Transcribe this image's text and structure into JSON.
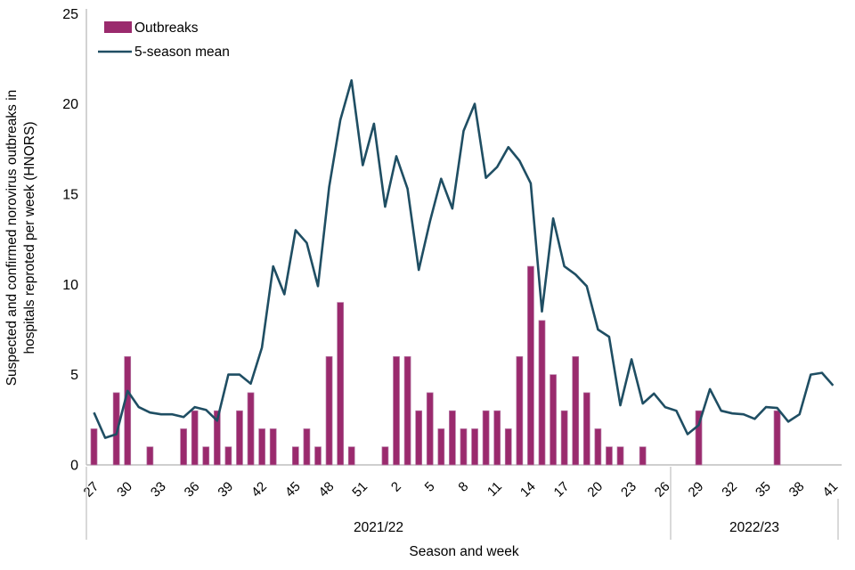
{
  "chart_data": {
    "type": "bar+line",
    "title": "",
    "xlabel": "Season and week",
    "ylabel_lines": [
      "Suspected and confirmed norovirus outbreaks in",
      "hospitals  reproted per week (HNORS)"
    ],
    "ylim": [
      0,
      25
    ],
    "yticks": [
      0,
      5,
      10,
      15,
      20,
      25
    ],
    "tick_every": 3,
    "legend_position": "top-left",
    "grid": false,
    "categories": [
      "27",
      "28",
      "29",
      "30",
      "31",
      "32",
      "33",
      "34",
      "35",
      "36",
      "37",
      "38",
      "39",
      "40",
      "41",
      "42",
      "43",
      "44",
      "45",
      "46",
      "47",
      "48",
      "49",
      "50",
      "51",
      "52",
      "1",
      "2",
      "3",
      "4",
      "5",
      "6",
      "7",
      "8",
      "9",
      "10",
      "11",
      "12",
      "13",
      "14",
      "15",
      "16",
      "17",
      "18",
      "19",
      "20",
      "21",
      "22",
      "23",
      "24",
      "25",
      "26",
      "27",
      "28",
      "29",
      "30",
      "31",
      "32",
      "33",
      "34",
      "35",
      "36",
      "37",
      "38",
      "39",
      "40",
      "41"
    ],
    "seasons": [
      {
        "label": "2021/22",
        "start_index": 0,
        "end_index": 51
      },
      {
        "label": "2022/23",
        "start_index": 52,
        "end_index": 66
      }
    ],
    "series": [
      {
        "name": "Outbreaks",
        "type": "bar",
        "color": "#9A2A6D",
        "values": [
          2,
          0,
          4,
          6,
          0,
          1,
          0,
          0,
          2,
          3,
          1,
          3,
          1,
          3,
          4,
          2,
          2,
          0,
          1,
          2,
          1,
          6,
          9,
          1,
          0,
          0,
          1,
          6,
          6,
          3,
          4,
          2,
          3,
          2,
          2,
          3,
          3,
          2,
          6,
          11,
          8,
          5,
          3,
          6,
          4,
          2,
          1,
          1,
          0,
          1,
          0,
          0,
          0,
          0,
          3,
          0,
          0,
          0,
          0,
          0,
          0,
          3,
          0,
          0,
          0,
          0,
          0
        ]
      },
      {
        "name": "5-season mean",
        "type": "line",
        "color": "#1F4E63",
        "values": [
          2.9,
          1.5,
          1.7,
          4.1,
          3.2,
          2.9,
          2.8,
          2.8,
          2.65,
          3.2,
          3.05,
          2.45,
          5.0,
          5.0,
          4.5,
          6.5,
          11.0,
          9.45,
          13.0,
          12.3,
          9.9,
          15.4,
          19.1,
          21.3,
          16.6,
          18.9,
          14.3,
          17.1,
          15.3,
          10.8,
          13.5,
          15.85,
          14.2,
          18.5,
          20.0,
          15.9,
          16.5,
          17.6,
          16.85,
          15.6,
          8.5,
          13.65,
          11.0,
          10.55,
          9.9,
          7.5,
          7.1,
          3.3,
          5.85,
          3.4,
          3.95,
          3.2,
          3.0,
          1.7,
          2.2,
          4.2,
          3.0,
          2.85,
          2.8,
          2.55,
          3.2,
          3.15,
          2.4,
          2.8,
          5.0,
          5.1,
          4.4
        ]
      }
    ],
    "colors": {
      "bar": "#9A2A6D",
      "bar_border": "#B577A4",
      "line": "#1F4E63",
      "axis": "#BFBFBF",
      "text": "#000000"
    }
  }
}
